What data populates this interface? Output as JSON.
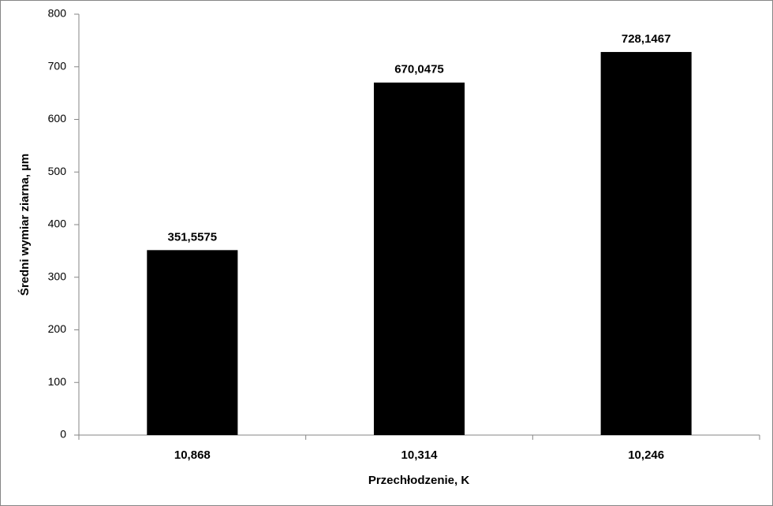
{
  "chart_data": {
    "type": "bar",
    "x_label": "Przechłodzenie, K",
    "y_label": "Średni wymiar ziarna, µm",
    "categories": [
      "10,868",
      "10,314",
      "10,246"
    ],
    "values": [
      351.5575,
      670.0475,
      728.1467
    ],
    "value_labels": [
      "351,5575",
      "670,0475",
      "728,1467"
    ],
    "color": "#000000",
    "ylim": [
      0,
      800
    ],
    "yticks": [
      0,
      100,
      200,
      300,
      400,
      500,
      600,
      700,
      800
    ],
    "grid": false
  }
}
